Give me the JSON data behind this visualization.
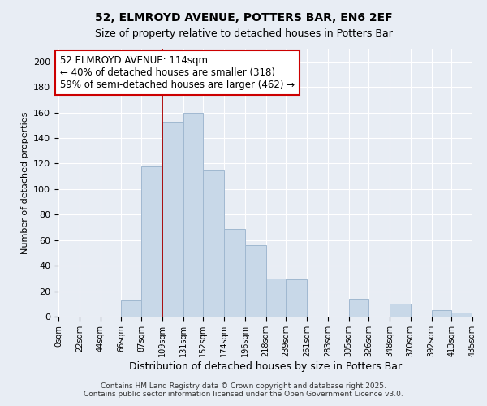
{
  "title": "52, ELMROYD AVENUE, POTTERS BAR, EN6 2EF",
  "subtitle": "Size of property relative to detached houses in Potters Bar",
  "xlabel": "Distribution of detached houses by size in Potters Bar",
  "ylabel": "Number of detached properties",
  "bar_color": "#c8d8e8",
  "bar_edgecolor": "#a0b8d0",
  "vline_x": 109,
  "vline_color": "#aa0000",
  "annotation_lines": [
    "52 ELMROYD AVENUE: 114sqm",
    "← 40% of detached houses are smaller (318)",
    "59% of semi-detached houses are larger (462) →"
  ],
  "bin_edges": [
    0,
    22,
    44,
    66,
    87,
    109,
    131,
    152,
    174,
    196,
    218,
    239,
    261,
    283,
    305,
    326,
    348,
    370,
    392,
    413,
    435
  ],
  "counts": [
    0,
    0,
    0,
    13,
    118,
    153,
    160,
    115,
    69,
    56,
    30,
    29,
    0,
    0,
    14,
    0,
    10,
    0,
    5,
    3
  ],
  "ylim": [
    0,
    210
  ],
  "yticks": [
    0,
    20,
    40,
    60,
    80,
    100,
    120,
    140,
    160,
    180,
    200
  ],
  "background_color": "#e8edf4",
  "plot_background": "#e8edf4",
  "footer": "Contains HM Land Registry data © Crown copyright and database right 2025.\nContains public sector information licensed under the Open Government Licence v3.0.",
  "title_fontsize": 10,
  "subtitle_fontsize": 9,
  "ann_fontsize": 8.5,
  "xlabel_fontsize": 9,
  "ylabel_fontsize": 8
}
